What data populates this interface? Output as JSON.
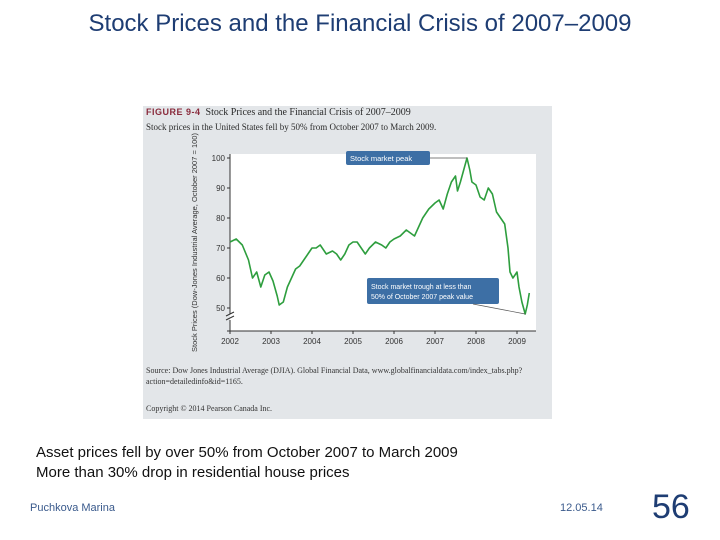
{
  "slide": {
    "title": "Stock Prices and the Financial Crisis of 2007–2009",
    "bullets": [
      "Asset prices fell by over 50% from October 2007 to March 2009",
      "More than 30% drop in residential house prices"
    ],
    "footer_author": "Puchkova Marina",
    "footer_date": "12.05.14",
    "slide_number": "56"
  },
  "figure": {
    "label": "FIGURE 9-4",
    "title": "Stock Prices and the Financial Crisis of 2007–2009",
    "caption": "Stock prices in the United States fell by 50% from October 2007 to March 2009.",
    "source_note": "Source: Dow Jones Industrial Average (DJIA). Global Financial Data, www.globalfinancialdata.com/index_tabs.php?action=detailedinfo&id=1165.",
    "copyright": "Copyright © 2014 Pearson Canada Inc."
  },
  "colors": {
    "line": "#2e9e3e",
    "panel": "#e3e6e9",
    "callout_fill": "#3d6fa5",
    "callout_text": "#ffffff",
    "title": "#1e3d73"
  },
  "chart_data": {
    "type": "line",
    "title": "",
    "xlabel": "",
    "ylabel": "Stock Prices (Dow-Jones Industrial Average, October 2007 = 100)",
    "xlim": [
      2002,
      2009.3
    ],
    "ylim": [
      40,
      100
    ],
    "axis_break": true,
    "grid": false,
    "xticks": [
      "2002",
      "2003",
      "2004",
      "2005",
      "2006",
      "2007",
      "2008",
      "2009"
    ],
    "yticks": [
      "100",
      "90",
      "80",
      "70",
      "60",
      "50"
    ],
    "series": [
      {
        "points": [
          [
            2002.0,
            72
          ],
          [
            2002.15,
            73
          ],
          [
            2002.3,
            71
          ],
          [
            2002.45,
            66
          ],
          [
            2002.55,
            60
          ],
          [
            2002.65,
            62
          ],
          [
            2002.75,
            57
          ],
          [
            2002.85,
            61
          ],
          [
            2002.95,
            62
          ],
          [
            2003.05,
            59
          ],
          [
            2003.15,
            54
          ],
          [
            2003.2,
            51
          ],
          [
            2003.3,
            52
          ],
          [
            2003.4,
            57
          ],
          [
            2003.5,
            60
          ],
          [
            2003.6,
            63
          ],
          [
            2003.7,
            64
          ],
          [
            2003.8,
            66
          ],
          [
            2003.9,
            68
          ],
          [
            2004.0,
            70
          ],
          [
            2004.1,
            70
          ],
          [
            2004.2,
            71
          ],
          [
            2004.35,
            68
          ],
          [
            2004.5,
            69
          ],
          [
            2004.6,
            68
          ],
          [
            2004.7,
            66
          ],
          [
            2004.8,
            68
          ],
          [
            2004.9,
            71
          ],
          [
            2005.0,
            72
          ],
          [
            2005.1,
            72
          ],
          [
            2005.2,
            70
          ],
          [
            2005.3,
            68
          ],
          [
            2005.4,
            70
          ],
          [
            2005.55,
            72
          ],
          [
            2005.7,
            71
          ],
          [
            2005.8,
            70
          ],
          [
            2005.9,
            72
          ],
          [
            2006.0,
            73
          ],
          [
            2006.15,
            74
          ],
          [
            2006.3,
            76
          ],
          [
            2006.4,
            75
          ],
          [
            2006.5,
            74
          ],
          [
            2006.6,
            77
          ],
          [
            2006.7,
            80
          ],
          [
            2006.85,
            83
          ],
          [
            2007.0,
            85
          ],
          [
            2007.1,
            86
          ],
          [
            2007.2,
            83
          ],
          [
            2007.3,
            88
          ],
          [
            2007.4,
            92
          ],
          [
            2007.5,
            94
          ],
          [
            2007.55,
            89
          ],
          [
            2007.62,
            92
          ],
          [
            2007.7,
            96
          ],
          [
            2007.78,
            100
          ],
          [
            2007.85,
            96
          ],
          [
            2007.9,
            92
          ],
          [
            2008.0,
            91
          ],
          [
            2008.1,
            87
          ],
          [
            2008.2,
            86
          ],
          [
            2008.3,
            90
          ],
          [
            2008.4,
            88
          ],
          [
            2008.5,
            82
          ],
          [
            2008.6,
            80
          ],
          [
            2008.7,
            78
          ],
          [
            2008.78,
            70
          ],
          [
            2008.83,
            62
          ],
          [
            2008.9,
            60
          ],
          [
            2008.95,
            61
          ],
          [
            2009.0,
            62
          ],
          [
            2009.05,
            57
          ],
          [
            2009.12,
            52
          ],
          [
            2009.2,
            48
          ],
          [
            2009.25,
            51
          ],
          [
            2009.3,
            55
          ]
        ]
      }
    ],
    "annotations": [
      "Stock market peak",
      "Stock market trough at less than 50% of October 2007 peak value"
    ]
  }
}
